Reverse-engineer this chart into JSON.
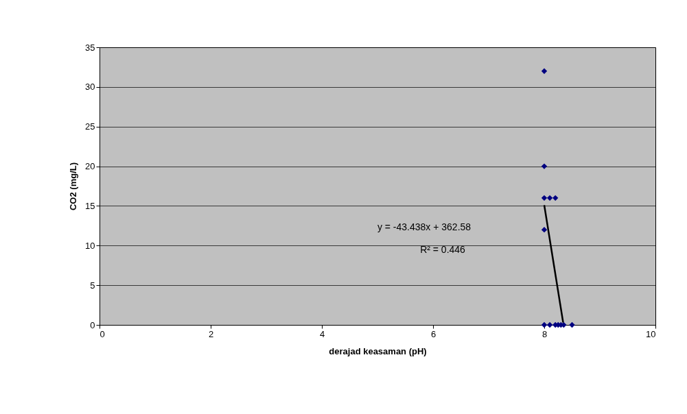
{
  "chart_data": {
    "type": "scatter",
    "xlabel": "derajad keasaman (pH)",
    "ylabel": "CO2 (mg/L)",
    "xlim": [
      0,
      10
    ],
    "xticks": [
      0,
      2,
      4,
      6,
      8,
      10
    ],
    "ylim": [
      0,
      35
    ],
    "yticks": [
      0,
      5,
      10,
      15,
      20,
      25,
      30,
      35
    ],
    "grid": "y",
    "marker": "diamond",
    "series": [
      {
        "color": "#000080",
        "x": [
          8.0,
          8.0,
          8.0,
          8.1,
          8.2,
          8.0,
          8.0,
          8.1,
          8.2,
          8.25,
          8.3,
          8.35,
          8.5
        ],
        "values": [
          32,
          20,
          16,
          16,
          16,
          12,
          0,
          0,
          0,
          0,
          0,
          0,
          0
        ]
      },
      {
        "type": "line",
        "color": "#000000",
        "marker": "none",
        "line_style": "solid",
        "x": [
          8.0,
          8.34
        ],
        "values": [
          15.1,
          0.3
        ]
      }
    ],
    "annotations": [
      "y = -43.438x + 362.58",
      "R² = 0.446"
    ]
  }
}
